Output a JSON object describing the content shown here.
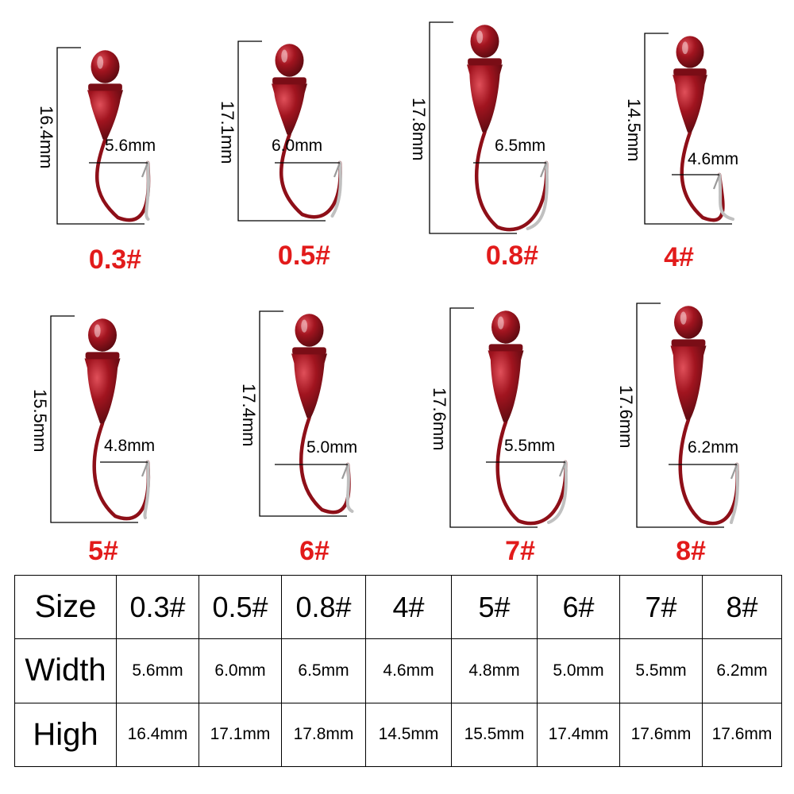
{
  "hooks": [
    {
      "size": "0.3#",
      "height": "16.4mm",
      "width": "5.6mm"
    },
    {
      "size": "0.5#",
      "height": "17.1mm",
      "width": "6.0mm"
    },
    {
      "size": "0.8#",
      "height": "17.8mm",
      "width": "6.5mm"
    },
    {
      "size": "4#",
      "height": "14.5mm",
      "width": "4.6mm"
    },
    {
      "size": "5#",
      "height": "15.5mm",
      "width": "4.8mm"
    },
    {
      "size": "6#",
      "height": "17.4mm",
      "width": "5.0mm"
    },
    {
      "size": "7#",
      "height": "17.6mm",
      "width": "5.5mm"
    },
    {
      "size": "8#",
      "height": "17.6mm",
      "width": "6.2mm"
    }
  ],
  "table": {
    "row_headers": [
      "Size",
      "Width",
      "High"
    ],
    "sizes": [
      "0.3#",
      "0.5#",
      "0.8#",
      "4#",
      "5#",
      "6#",
      "7#",
      "8#"
    ],
    "widths": [
      "5.6mm",
      "6.0mm",
      "6.5mm",
      "4.6mm",
      "4.8mm",
      "5.0mm",
      "5.5mm",
      "6.2mm"
    ],
    "heights": [
      "16.4mm",
      "17.1mm",
      "17.8mm",
      "14.5mm",
      "15.5mm",
      "17.4mm",
      "17.6mm",
      "17.6mm"
    ]
  },
  "colors": {
    "size_label": "#e21b1b",
    "bead": "#a1141f",
    "hook_wire": "#c0c0c0",
    "lines": "#000000"
  }
}
